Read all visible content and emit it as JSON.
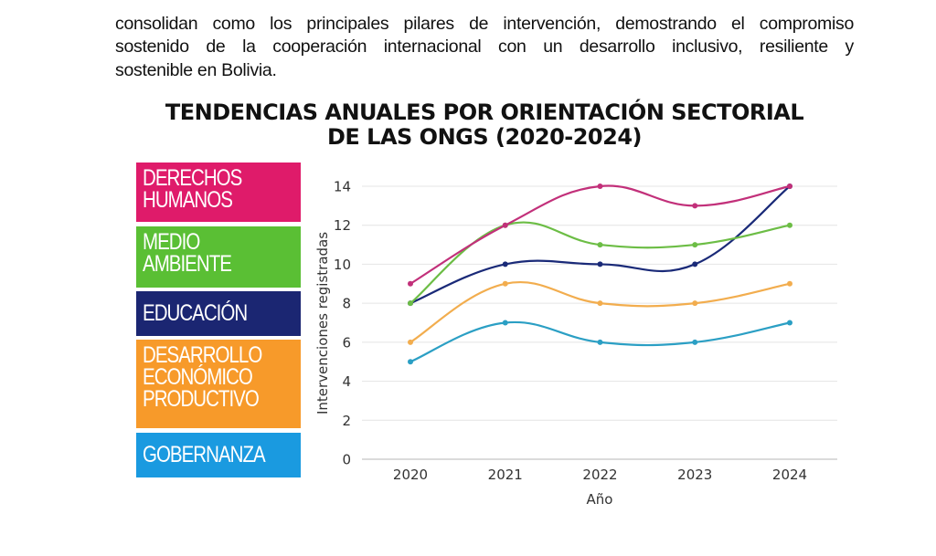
{
  "document": {
    "paragraph_lines": [
      "consolidan como los principales pilares de intervención, demostrando el compromiso",
      "sostenido de la cooperación internacional con un desarrollo inclusivo, resiliente y",
      "sostenible en Bolivia."
    ]
  },
  "chart_data": {
    "type": "line",
    "title": "TENDENCIAS ANUALES POR ORIENTACIÓN SECTORIAL DE LAS ONGS (2020-2024)",
    "title_lines": [
      "TENDENCIAS ANUALES POR ORIENTACIÓN SECTORIAL",
      "DE LAS ONGS (2020-2024)"
    ],
    "xlabel": "Año",
    "ylabel": "Intervenciones registradas",
    "x": [
      "2020",
      "2021",
      "2022",
      "2023",
      "2024"
    ],
    "ylim": [
      0,
      14
    ],
    "yticks": [
      "0",
      "2",
      "4",
      "6",
      "8",
      "10",
      "12",
      "14"
    ],
    "grid": true,
    "legend_placement": "left",
    "series": [
      {
        "name": "DERECHOS HUMANOS",
        "legend_lines": [
          "DERECHOS",
          "HUMANOS"
        ],
        "color": "#c2307a",
        "box_color": "#df1b6a",
        "values": [
          9,
          12,
          14,
          13,
          14
        ]
      },
      {
        "name": "MEDIO AMBIENTE",
        "legend_lines": [
          "MEDIO",
          "AMBIENTE"
        ],
        "color": "#6cbd45",
        "box_color": "#5abf34",
        "values": [
          8,
          12,
          11,
          11,
          12
        ]
      },
      {
        "name": "EDUCACIÓN",
        "legend_lines": [
          "EDUCACIÓN"
        ],
        "color": "#1a2a78",
        "box_color": "#1b2672",
        "values": [
          8,
          10,
          10,
          10,
          14
        ]
      },
      {
        "name": "DESARROLLO ECONÓMICO PRODUCTIVO",
        "legend_lines": [
          "DESARROLLO",
          "ECONÓMICO",
          "PRODUCTIVO"
        ],
        "color": "#f2ad4e",
        "box_color": "#f79a2a",
        "values": [
          6,
          9,
          8,
          8,
          9
        ]
      },
      {
        "name": "GOBERNANZA",
        "legend_lines": [
          "GOBERNANZA"
        ],
        "color": "#2b9fc4",
        "box_color": "#1a9ae0",
        "values": [
          5,
          7,
          6,
          6,
          7
        ]
      }
    ]
  }
}
